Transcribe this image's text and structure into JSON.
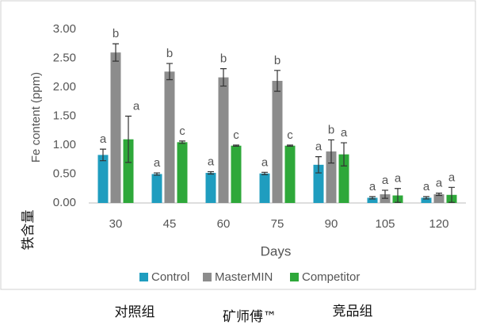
{
  "chart_data": {
    "type": "bar",
    "y_label": "Fe content (ppm)",
    "x_label": "Days",
    "y_label_cn": "铁含量",
    "group_labels": [
      "对照组",
      "矿师傅™",
      "竞品组"
    ],
    "categories": [
      "30",
      "45",
      "60",
      "75",
      "90",
      "105",
      "120"
    ],
    "series": [
      {
        "name": "Control",
        "color": "#1f9dbf",
        "values": [
          0.83,
          0.5,
          0.52,
          0.51,
          0.66,
          0.09,
          0.09
        ],
        "errors": [
          0.1,
          0.02,
          0.02,
          0.02,
          0.14,
          0.02,
          0.02
        ],
        "letters": [
          "a",
          "a",
          "a",
          "a",
          "a",
          "a",
          "a"
        ]
      },
      {
        "name": "MasterMIN",
        "color": "#8c8c8c",
        "values": [
          2.6,
          2.27,
          2.17,
          2.11,
          0.89,
          0.15,
          0.15
        ],
        "errors": [
          0.15,
          0.14,
          0.15,
          0.18,
          0.2,
          0.07,
          0.02
        ],
        "letters": [
          "b",
          "b",
          "b",
          "b",
          "b",
          "a",
          "a"
        ]
      },
      {
        "name": "Competitor",
        "color": "#2ea83a",
        "values": [
          1.1,
          1.05,
          0.99,
          0.99,
          0.84,
          0.13,
          0.14
        ],
        "errors": [
          0.4,
          0.02,
          0.01,
          0.01,
          0.2,
          0.12,
          0.13
        ],
        "letters": [
          "a",
          "c",
          "c",
          "c",
          "a",
          "a",
          "a"
        ]
      }
    ],
    "ylim": [
      0,
      3
    ],
    "yticks": [
      {
        "value": 0,
        "label": "0.00"
      },
      {
        "value": 0.5,
        "label": "0.50"
      },
      {
        "value": 1,
        "label": "1.00"
      },
      {
        "value": 1.5,
        "label": "1.50"
      },
      {
        "value": 2,
        "label": "2.00"
      },
      {
        "value": 2.5,
        "label": "2.50"
      },
      {
        "value": 3,
        "label": "3.00"
      }
    ],
    "legend": "bottom"
  }
}
